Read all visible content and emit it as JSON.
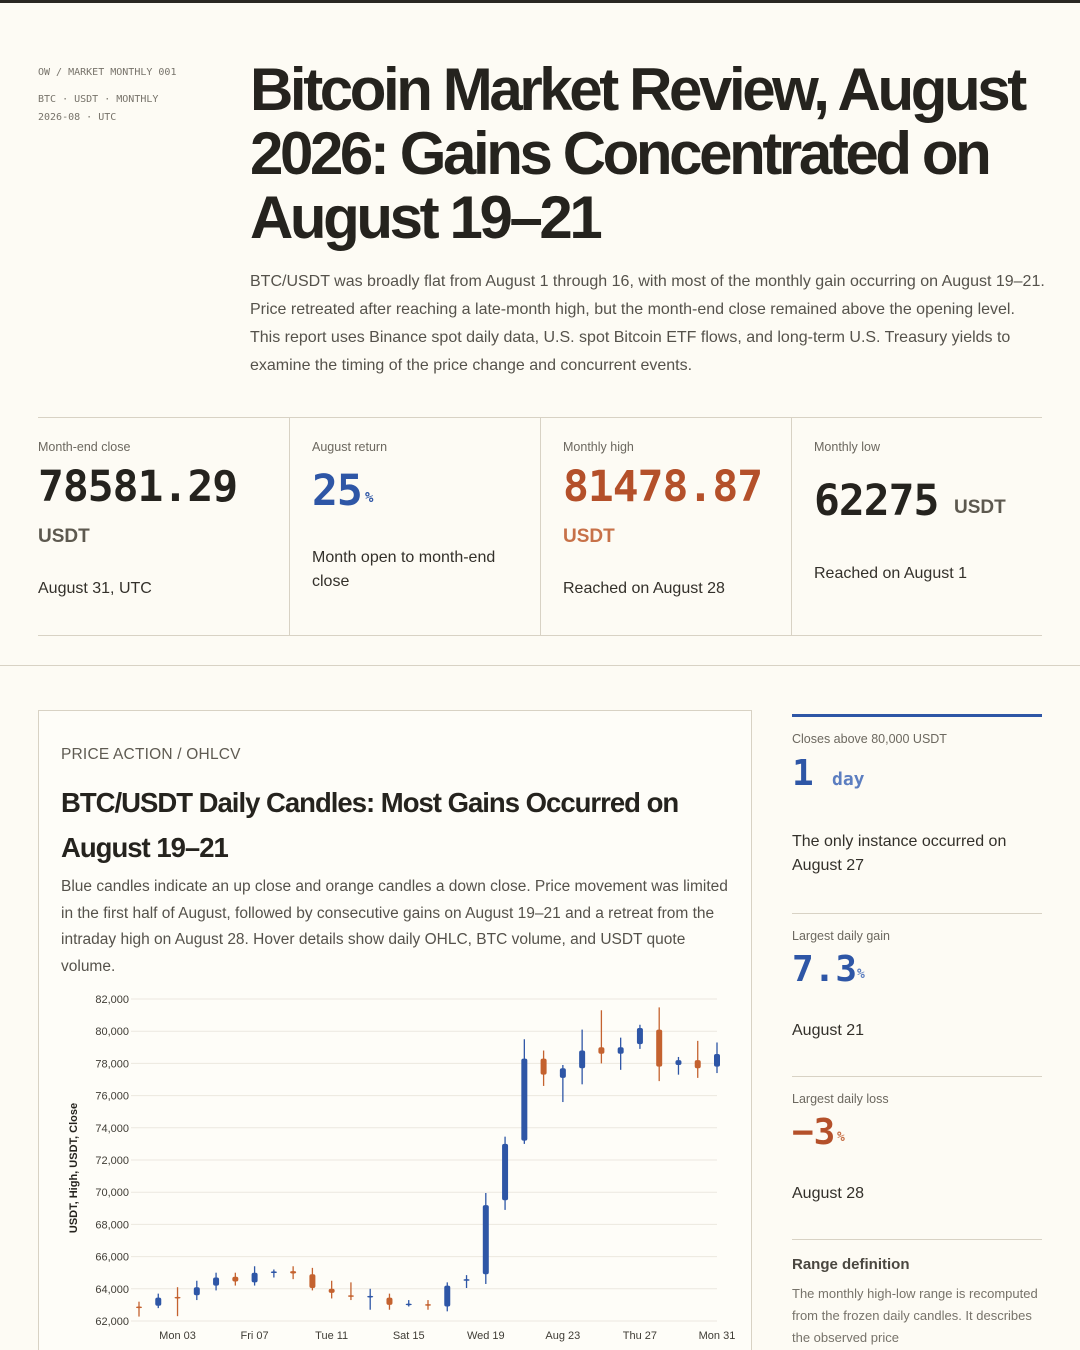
{
  "meta": {
    "crumb": "OW / MARKET MONTHLY 001",
    "line1": "BTC · USDT · MONTHLY",
    "line2": "2026-08 · UTC"
  },
  "title": "Bitcoin Market Review, August 2026: Gains Concentrated on August 19–21",
  "lede": "BTC/USDT was broadly flat from August 1 through 16, with most of the monthly gain occurring on August 19–21. Price retreated after reaching a late-month high, but the month-end close remained above the opening level. This report uses Binance spot daily data, U.S. spot Bitcoin ETF flows, and long-term U.S. Treasury yields to examine the timing of the price change and concurrent events.",
  "kpis": [
    {
      "label": "Month-end close",
      "value": "78581.29",
      "unit": "USDT",
      "note": "August 31, UTC",
      "color": "#25231e",
      "unit_color": "#5d594f"
    },
    {
      "label": "August return",
      "value": "25",
      "unit": "%",
      "note": "Month open to month-end close",
      "color": "#2e56a6",
      "unit_color": "#2e56a6"
    },
    {
      "label": "Monthly high",
      "value": "81478.87",
      "unit": "USDT",
      "note": "Reached on August 28",
      "color": "#b4502a",
      "unit_color": "#c77148"
    },
    {
      "label": "Monthly low",
      "value": "62275",
      "unit": "USDT",
      "note": "Reached on August 1",
      "color": "#25231e",
      "unit_color": "#5d594f"
    }
  ],
  "chart_card": {
    "kicker": "PRICE ACTION / OHLCV",
    "title": "BTC/USDT Daily Candles: Most Gains Occurred on August 19–21",
    "description": "Blue candles indicate an up close and orange candles a down close. Price movement was limited in the first half of August, followed by consecutive gains on August 19–21 and a retreat from the intraday high on August 28. Hover details show daily OHLC, BTC volume, and USDT quote volume."
  },
  "side": [
    {
      "label": "Closes above 80,000 USDT",
      "value": "1",
      "unit": "day",
      "note": "The only instance occurred on August 27"
    },
    {
      "label": "Largest daily gain",
      "value": "7.3",
      "unit": "%",
      "note": "August 21"
    },
    {
      "label": "Largest daily loss",
      "value": "−3",
      "unit": "%",
      "note": "August 28"
    }
  ],
  "range_def": {
    "title": "Range definition",
    "text": "The monthly high-low range is recomputed from the frozen daily candles. It describes the observed price"
  },
  "colors": {
    "up": "#2e56a6",
    "down": "#c4622f",
    "grid": "#ece8df"
  },
  "chart_data": {
    "type": "candlestick",
    "ylabel": "USDT, High, USDT, Close",
    "ylim": [
      62000,
      82000
    ],
    "y_ticks": [
      "62,000",
      "64,000",
      "66,000",
      "68,000",
      "70,000",
      "72,000",
      "74,000",
      "76,000",
      "78,000",
      "80,000",
      "82,000"
    ],
    "x_ticks": [
      {
        "day": 3,
        "label": "Mon 03"
      },
      {
        "day": 7,
        "label": "Fri 07"
      },
      {
        "day": 11,
        "label": "Tue 11"
      },
      {
        "day": 15,
        "label": "Sat 15"
      },
      {
        "day": 19,
        "label": "Wed 19"
      },
      {
        "day": 23,
        "label": "Aug 23"
      },
      {
        "day": 27,
        "label": "Thu 27"
      },
      {
        "day": 31,
        "label": "Mon 31"
      }
    ],
    "grid": true,
    "candles": [
      {
        "day": 1,
        "open": 62900,
        "high": 63200,
        "low": 62275,
        "close": 62880
      },
      {
        "day": 2,
        "open": 62950,
        "high": 63700,
        "low": 62800,
        "close": 63450
      },
      {
        "day": 3,
        "open": 63500,
        "high": 64100,
        "low": 62300,
        "close": 63480
      },
      {
        "day": 4,
        "open": 63600,
        "high": 64500,
        "low": 63300,
        "close": 64100
      },
      {
        "day": 5,
        "open": 64200,
        "high": 65000,
        "low": 63900,
        "close": 64700
      },
      {
        "day": 6,
        "open": 64750,
        "high": 65000,
        "low": 64200,
        "close": 64450
      },
      {
        "day": 7,
        "open": 64400,
        "high": 65400,
        "low": 64200,
        "close": 65000
      },
      {
        "day": 8,
        "open": 65000,
        "high": 65200,
        "low": 64700,
        "close": 65080
      },
      {
        "day": 9,
        "open": 65100,
        "high": 65400,
        "low": 64600,
        "close": 64950
      },
      {
        "day": 10,
        "open": 64900,
        "high": 65300,
        "low": 63900,
        "close": 64050
      },
      {
        "day": 11,
        "open": 64000,
        "high": 64500,
        "low": 63400,
        "close": 63750
      },
      {
        "day": 12,
        "open": 63600,
        "high": 64400,
        "low": 63300,
        "close": 63550
      },
      {
        "day": 13,
        "open": 63550,
        "high": 64000,
        "low": 62700,
        "close": 63560
      },
      {
        "day": 14,
        "open": 63450,
        "high": 63700,
        "low": 62700,
        "close": 63000
      },
      {
        "day": 15,
        "open": 63000,
        "high": 63300,
        "low": 62900,
        "close": 63080
      },
      {
        "day": 16,
        "open": 63050,
        "high": 63300,
        "low": 62700,
        "close": 62950
      },
      {
        "day": 17,
        "open": 62900,
        "high": 64400,
        "low": 62600,
        "close": 64200
      },
      {
        "day": 18,
        "open": 64550,
        "high": 64850,
        "low": 64050,
        "close": 64600
      },
      {
        "day": 19,
        "open": 64900,
        "high": 69950,
        "low": 64300,
        "close": 69200
      },
      {
        "day": 20,
        "open": 69500,
        "high": 73450,
        "low": 68900,
        "close": 73000
      },
      {
        "day": 21,
        "open": 73200,
        "high": 79500,
        "low": 73000,
        "close": 78300
      },
      {
        "day": 22,
        "open": 78300,
        "high": 78800,
        "low": 76600,
        "close": 77300
      },
      {
        "day": 23,
        "open": 77100,
        "high": 77900,
        "low": 75600,
        "close": 77700
      },
      {
        "day": 24,
        "open": 77700,
        "high": 80100,
        "low": 76700,
        "close": 78800
      },
      {
        "day": 25,
        "open": 79000,
        "high": 81300,
        "low": 78000,
        "close": 78600
      },
      {
        "day": 26,
        "open": 78600,
        "high": 79600,
        "low": 77600,
        "close": 79000
      },
      {
        "day": 27,
        "open": 79200,
        "high": 80400,
        "low": 78900,
        "close": 80200
      },
      {
        "day": 28,
        "open": 80100,
        "high": 81478.87,
        "low": 76900,
        "close": 77800
      },
      {
        "day": 29,
        "open": 77900,
        "high": 78400,
        "low": 77300,
        "close": 78200
      },
      {
        "day": 30,
        "open": 78200,
        "high": 79400,
        "low": 77100,
        "close": 77700
      },
      {
        "day": 31,
        "open": 77800,
        "high": 79300,
        "low": 77400,
        "close": 78581.29
      }
    ]
  }
}
